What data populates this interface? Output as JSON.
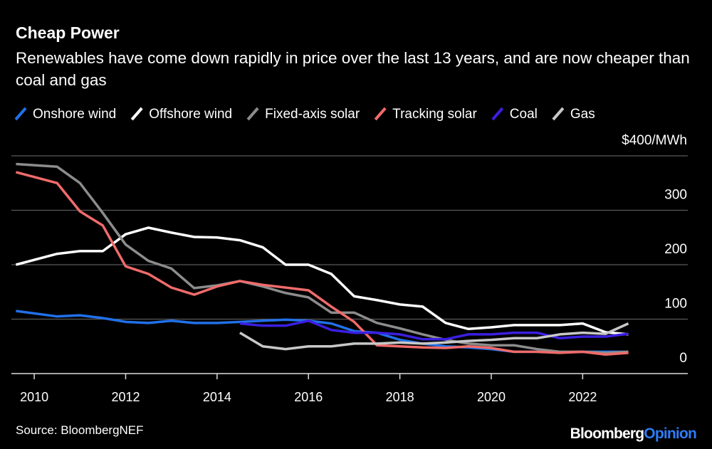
{
  "chart_data": {
    "type": "line",
    "title": "Cheap Power",
    "subtitle": "Renewables have come down rapidly in price over the last 13 years, and are now cheaper than coal and gas",
    "source": "Source: BloombergNEF",
    "logo": [
      "Bloomberg",
      "Opinion"
    ],
    "x": [
      2009.6,
      2010.5,
      2011,
      2011.5,
      2012,
      2012.5,
      2013,
      2013.5,
      2014,
      2014.5,
      2015,
      2015.5,
      2016,
      2016.5,
      2017,
      2017.5,
      2018,
      2018.5,
      2019,
      2019.5,
      2020,
      2020.5,
      2021,
      2021.5,
      2022,
      2022.5,
      2023
    ],
    "series": [
      {
        "name": "Onshore wind",
        "color": "#2170e8",
        "values": [
          115,
          105,
          107,
          102,
          95,
          93,
          97,
          93,
          93,
          95,
          97,
          99,
          97,
          92,
          78,
          75,
          62,
          55,
          50,
          48,
          45,
          40,
          40,
          39,
          40,
          40,
          40
        ]
      },
      {
        "name": "Offshore wind",
        "color": "#ffffff",
        "values": [
          200,
          220,
          225,
          225,
          256,
          268,
          259,
          251,
          250,
          245,
          232,
          200,
          200,
          183,
          142,
          135,
          127,
          123,
          93,
          82,
          85,
          89,
          89,
          89,
          92,
          76,
          72
        ]
      },
      {
        "name": "Fixed-axis solar",
        "color": "#8c8c8c",
        "values": [
          385,
          380,
          350,
          295,
          237,
          207,
          193,
          157,
          162,
          170,
          160,
          148,
          140,
          112,
          112,
          93,
          83,
          72,
          62,
          55,
          52,
          52,
          45,
          40,
          40,
          38,
          40
        ]
      },
      {
        "name": "Tracking solar",
        "color": "#f06b6b",
        "values": [
          370,
          350,
          298,
          272,
          197,
          183,
          158,
          145,
          160,
          170,
          163,
          158,
          153,
          123,
          95,
          52,
          50,
          48,
          47,
          50,
          47,
          40,
          40,
          38,
          40,
          35,
          38
        ]
      },
      {
        "name": "Coal",
        "color": "#3b1fe0",
        "values": [
          null,
          null,
          null,
          null,
          null,
          null,
          null,
          null,
          null,
          92,
          88,
          88,
          97,
          80,
          75,
          75,
          72,
          63,
          63,
          72,
          72,
          75,
          75,
          65,
          68,
          68,
          73
        ]
      },
      {
        "name": "Gas",
        "color": "#c8c8c8",
        "values": [
          null,
          null,
          null,
          null,
          null,
          null,
          null,
          null,
          null,
          75,
          50,
          45,
          50,
          50,
          55,
          55,
          57,
          55,
          57,
          60,
          62,
          65,
          65,
          72,
          75,
          73,
          92
        ]
      }
    ],
    "xlim": [
      2009.5,
      2024.3
    ],
    "xticks": [
      2010,
      2012,
      2014,
      2016,
      2018,
      2020,
      2022
    ],
    "ylim": [
      0,
      400
    ],
    "yticks": [
      0,
      100,
      200,
      300,
      {
        "value": 400,
        "label": "$400/MWh"
      }
    ],
    "grid": true
  }
}
